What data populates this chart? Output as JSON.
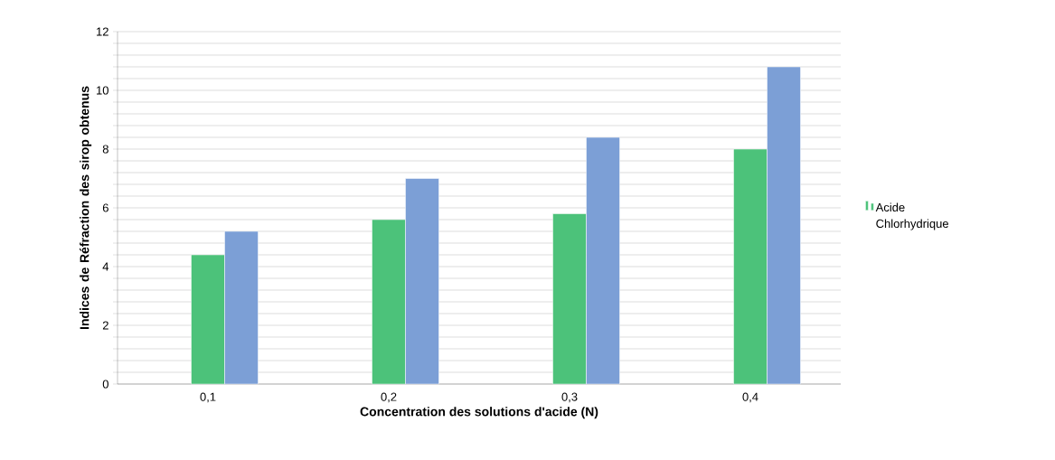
{
  "chart_data": {
    "type": "bar",
    "xlabel": "Concentration des solutions d'acide (N)",
    "ylabel": "Indices de Réfraction des sirop obtenus",
    "categories": [
      "0,1",
      "0,2",
      "0,3",
      "0,4"
    ],
    "series": [
      {
        "name": "Acide Chlorhydrique",
        "color": "#4cc27a",
        "values": [
          4.4,
          5.6,
          5.8,
          8.0
        ]
      },
      {
        "color": "#7c9fd6",
        "values": [
          5.2,
          7.0,
          8.4,
          10.8
        ]
      }
    ],
    "ylim": [
      0,
      12
    ],
    "yticks": [
      0,
      {
        "value": 0.4,
        "label": null
      },
      {
        "value": 0.8,
        "label": null
      },
      {
        "value": 1.2,
        "label": null
      },
      {
        "value": 1.6,
        "label": null
      },
      2,
      {
        "value": 2.4,
        "label": null
      },
      {
        "value": 2.8,
        "label": null
      },
      {
        "value": 3.2,
        "label": null
      },
      {
        "value": 3.6,
        "label": null
      },
      4,
      {
        "value": 4.4,
        "label": null
      },
      {
        "value": 4.8,
        "label": null
      },
      {
        "value": 5.2,
        "label": null
      },
      {
        "value": 5.6,
        "label": null
      },
      6,
      {
        "value": 6.4,
        "label": null
      },
      {
        "value": 6.8,
        "label": null
      },
      {
        "value": 7.2,
        "label": null
      },
      {
        "value": 7.6,
        "label": null
      },
      8,
      {
        "value": 8.4,
        "label": null
      },
      {
        "value": 8.8,
        "label": null
      },
      {
        "value": 9.2,
        "label": null
      },
      {
        "value": 9.6,
        "label": null
      },
      10,
      {
        "value": 10.4,
        "label": null
      },
      {
        "value": 10.8,
        "label": null
      },
      {
        "value": 11.2,
        "label": null
      },
      {
        "value": 11.6,
        "label": null
      },
      12
    ],
    "grid": "y",
    "legend": "right"
  }
}
